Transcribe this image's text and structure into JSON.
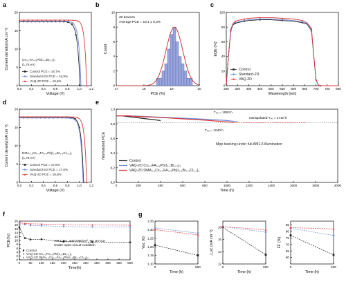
{
  "colors": {
    "control": "#222222",
    "standard": "#6f8fd9",
    "vaq": "#d9373a",
    "accent": "#c43a3a"
  },
  "panel_labels": [
    "a",
    "b",
    "c",
    "d",
    "e",
    "f",
    "g"
  ],
  "chart_data": [
    {
      "id": "a",
      "type": "line",
      "xlabel": "Voltage (V)",
      "ylabel": "Current density(mA cm⁻²)",
      "xlim": [
        0,
        1.4
      ],
      "ylim": [
        0,
        20
      ],
      "xticks": [
        "0,0",
        "0,2",
        "0,4",
        "0,6",
        "0,8",
        "1,0",
        "1,2"
      ],
      "yticks": [
        "0",
        "5",
        "10",
        "15",
        "20"
      ],
      "composition": "Cs₀.₂FA₀.₈Pb(I₀.₅Br₀.₅)₃",
      "bandgap": "(1,78 eV)",
      "series": [
        {
          "name": "Control PCE = 16,7%",
          "jsc": 17.5,
          "voc": 1.18,
          "n": 0.05
        },
        {
          "name": "Standard-2D PCE = 16,9%",
          "jsc": 17.6,
          "voc": 1.2,
          "n": 0.045
        },
        {
          "name": "VAQ-2D PCE = 19,6%",
          "jsc": 17.9,
          "voc": 1.31,
          "n": 0.04
        }
      ]
    },
    {
      "id": "b",
      "type": "bar",
      "xlabel": "PCE (%)",
      "ylabel": "Count",
      "xlim": [
        17,
        20
      ],
      "ylim": [
        0,
        10
      ],
      "xticks": [
        "17",
        "18",
        "19",
        "20"
      ],
      "yticks": [
        "0",
        "2",
        "4",
        "6",
        "8",
        "10"
      ],
      "annotation_1": "30 devices",
      "annotation_2": "Average PCE = 19,1 ± 0,3%",
      "bin_centers": [
        18.5,
        18.6,
        18.7,
        18.8,
        18.9,
        19.0,
        19.1,
        19.2,
        19.3,
        19.4,
        19.5,
        19.6,
        19.7
      ],
      "counts": [
        1,
        1,
        2,
        3,
        5,
        7,
        8,
        6,
        4,
        3,
        2,
        1,
        1
      ],
      "fit": {
        "mean": 19.1,
        "sigma": 0.3,
        "peak": 8
      }
    },
    {
      "id": "c",
      "type": "line",
      "xlabel": "Wavelength (nm)",
      "ylabel": "EQE (%)",
      "xlim": [
        300,
        800
      ],
      "ylim": [
        0,
        100
      ],
      "xticks": [
        "300",
        "350",
        "400",
        "450",
        "500",
        "550",
        "600",
        "650",
        "700",
        "750",
        "800"
      ],
      "yticks": [
        "0",
        "20",
        "40",
        "60",
        "80",
        "100"
      ],
      "series": [
        {
          "name": "Control",
          "x": [
            300,
            310,
            320,
            330,
            340,
            350,
            380,
            400,
            450,
            500,
            550,
            600,
            640,
            660,
            680,
            690,
            700,
            710,
            720,
            800
          ],
          "y": [
            2,
            40,
            75,
            83,
            85,
            86,
            88,
            89,
            90,
            90,
            89,
            88,
            86,
            84,
            75,
            40,
            8,
            1,
            0,
            0
          ]
        },
        {
          "name": "Standard-2D",
          "x": [
            300,
            310,
            320,
            330,
            340,
            350,
            380,
            400,
            450,
            500,
            550,
            600,
            640,
            660,
            680,
            690,
            700,
            710,
            720,
            800
          ],
          "y": [
            2,
            41,
            76,
            84,
            86,
            87,
            89,
            90,
            91,
            91,
            90,
            89,
            87,
            85,
            76,
            41,
            8,
            1,
            0,
            0
          ]
        },
        {
          "name": "VAQ-2D",
          "x": [
            300,
            310,
            320,
            330,
            340,
            350,
            380,
            400,
            450,
            500,
            550,
            600,
            640,
            660,
            680,
            690,
            700,
            710,
            720,
            800
          ],
          "y": [
            2,
            42,
            77,
            85,
            88,
            89,
            91,
            92,
            93,
            93,
            92,
            91,
            89,
            86,
            78,
            42,
            9,
            1,
            0,
            0
          ]
        }
      ]
    },
    {
      "id": "d",
      "type": "line",
      "xlabel": "Voltage (V)",
      "ylabel": "Current density(mA cm⁻²)",
      "xlim": [
        0,
        1.4
      ],
      "ylim": [
        0,
        20
      ],
      "xticks": [
        "0,0",
        "0,2",
        "0,4",
        "0,6",
        "0,8",
        "1,0",
        "1,2"
      ],
      "yticks": [
        "0",
        "5",
        "10",
        "15",
        "20"
      ],
      "composition": "DMA₀.₁Cs₀.₃FA₀.₆Pb(I₀.₆Br₀.₃Cl₀.₁)₃",
      "bandgap": "(1,78 eV)",
      "series": [
        {
          "name": "Control PCE = 17,8%",
          "jsc": 17.8,
          "voc": 1.25,
          "n": 0.045
        },
        {
          "name": "Standard-2D PCE = 17,6%",
          "jsc": 17.6,
          "voc": 1.24,
          "n": 0.045
        },
        {
          "name": "VAQ-2D PCE = 19,6%",
          "jsc": 17.9,
          "voc": 1.31,
          "n": 0.04
        }
      ]
    },
    {
      "id": "e",
      "type": "line",
      "xlabel": "Time (h)",
      "ylabel": "Normalized PCE",
      "xlim": [
        0,
        2000
      ],
      "ylim": [
        0,
        1.1
      ],
      "xticks": [
        "0",
        "200",
        "400",
        "600",
        "800",
        "1000",
        "1200",
        "1400",
        "1600",
        "1800",
        "2000"
      ],
      "yticks": [
        "0,0",
        "0,2",
        "0,4",
        "0,6",
        "0,8",
        "1,0"
      ],
      "annotation_t1": "T₉₀ = 1060 h",
      "annotation_t2": "T₉₀ = 1040 h",
      "annotation_ext": "extrapolated T₉₀ = 1710 h",
      "caption": "Mpp tracking under full AM1,5 illumination",
      "ref_line": 0.9,
      "series": [
        {
          "name": "Control",
          "x": [
            0,
            50,
            100,
            200,
            300,
            400
          ],
          "y": [
            1.0,
            1.0,
            0.99,
            0.97,
            0.95,
            0.93
          ]
        },
        {
          "name": "VAQ-2D Cs₀.₂FA₀.₈Pb(I₀.₅Br₀.₅)₃",
          "x": [
            0,
            100,
            200,
            400,
            600,
            800,
            1000,
            1100
          ],
          "y": [
            1.0,
            1.0,
            0.995,
            0.98,
            0.965,
            0.95,
            0.93,
            0.91
          ]
        },
        {
          "name": "VAQ-2D DMA₀.₁Cs₀.₃FA₀.₆Pb(I₀.₆Br₀.₃Cl₀.₁)₃",
          "x": [
            0,
            100,
            200,
            400,
            600,
            800,
            1000,
            1060
          ],
          "y": [
            1.0,
            1.0,
            0.99,
            0.975,
            0.955,
            0.935,
            0.91,
            0.9
          ]
        }
      ]
    },
    {
      "id": "f",
      "type": "line",
      "xlabel": "Time(h)",
      "ylabel": "PCE(%)",
      "xlim": [
        0,
        500
      ],
      "ylim": [
        0,
        20
      ],
      "xticks": [
        "0",
        "50",
        "100",
        "150",
        "200",
        "250",
        "300",
        "350",
        "400",
        "450",
        "500"
      ],
      "yticks": [
        "0",
        "2",
        "4",
        "6",
        "8",
        "10",
        "12",
        "14",
        "16",
        "18",
        "20"
      ],
      "annotation_1": "AM 1,5G, 100 mW/cm², No UV-cut",
      "annotation_2": "Under open-circuit condition",
      "series": [
        {
          "name": "Control",
          "x": [
            0,
            25,
            50,
            100,
            200,
            330,
            500
          ],
          "y": [
            16.8,
            11.2,
            10.5,
            10.6,
            9.4,
            9.1,
            9.0
          ]
        },
        {
          "name": "VAQ-2D Cs₀.₂FA₀.₈Pb(I₀.₅Br₀.₅)₃",
          "x": [
            0,
            25,
            50,
            100,
            200,
            330,
            500
          ],
          "y": [
            19.0,
            18.2,
            17.8,
            17.6,
            17.2,
            17.0,
            16.9
          ]
        },
        {
          "name": "VAQ-2D DMA₀.₁Cs₀.₃FA₀.₆Pb(I₀.₆Br₀.₃Cl₀.₁)₃",
          "x": [
            0,
            25,
            50,
            100,
            200,
            330,
            500
          ],
          "y": [
            19.3,
            18.8,
            18.6,
            18.5,
            18.2,
            18.0,
            17.9
          ]
        }
      ]
    },
    {
      "id": "g1",
      "type": "scatter",
      "xlabel": "Time (h)",
      "ylabel": "Voc (V)",
      "xlim": [
        0,
        500
      ],
      "ylim": [
        1.1,
        1.35
      ],
      "xticks": [
        "0",
        "500"
      ],
      "yticks": [
        "1,10",
        "1,15",
        "1,20",
        "1,25",
        "1,30",
        "1,35"
      ],
      "series": [
        {
          "name": "Control",
          "x": [
            0,
            500
          ],
          "y": [
            1.21,
            1.15
          ]
        },
        {
          "name": "Standard-2D",
          "x": [
            0,
            500
          ],
          "y": [
            1.31,
            1.28
          ]
        },
        {
          "name": "VAQ-2D",
          "x": [
            0,
            500
          ],
          "y": [
            1.3,
            1.27
          ]
        }
      ]
    },
    {
      "id": "g2",
      "type": "scatter",
      "xlabel": "Time (h)",
      "ylabel": "J_sc (mA cm⁻²)",
      "xlim": [
        0,
        500
      ],
      "ylim": [
        12,
        19
      ],
      "xticks": [
        "0",
        "500"
      ],
      "yticks": [
        "12",
        "14",
        "16",
        "18"
      ],
      "series": [
        {
          "name": "Control",
          "x": [
            0,
            500
          ],
          "y": [
            18.0,
            13.5
          ]
        },
        {
          "name": "Standard-2D",
          "x": [
            0,
            500
          ],
          "y": [
            18.1,
            17.2
          ]
        },
        {
          "name": "VAQ-2D",
          "x": [
            0,
            500
          ],
          "y": [
            18.1,
            17.6
          ]
        }
      ]
    },
    {
      "id": "g3",
      "type": "scatter",
      "xlabel": "Time (h)",
      "ylabel": "FF (%)",
      "xlim": [
        0,
        500
      ],
      "ylim": [
        55,
        88
      ],
      "xticks": [
        "0",
        "500"
      ],
      "yticks": [
        "60",
        "65",
        "70",
        "75",
        "80",
        "85"
      ],
      "series": [
        {
          "name": "Control",
          "x": [
            0,
            500
          ],
          "y": [
            77,
            62
          ]
        },
        {
          "name": "Standard-2D",
          "x": [
            0,
            500
          ],
          "y": [
            82.5,
            77
          ]
        },
        {
          "name": "VAQ-2D",
          "x": [
            0,
            500
          ],
          "y": [
            83,
            82
          ]
        }
      ]
    }
  ]
}
